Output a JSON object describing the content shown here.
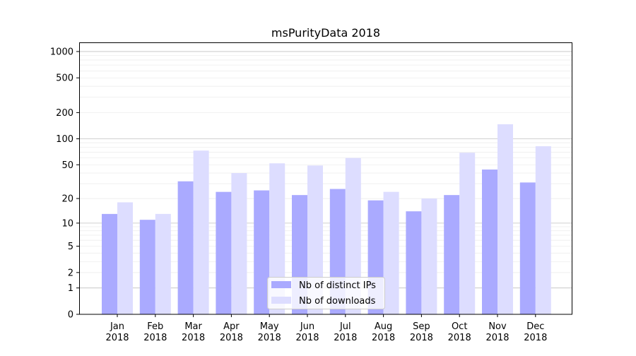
{
  "chart_data": {
    "type": "bar",
    "title": "msPurityData 2018",
    "xlabel": "",
    "ylabel": "",
    "yscale": "log(1+y)",
    "ylim": [
      0,
      1300
    ],
    "yticks": [
      0,
      1,
      2,
      5,
      10,
      20,
      50,
      100,
      200,
      500,
      1000
    ],
    "grid": true,
    "legend_position": "bottom-center",
    "categories": [
      "Jan\n2018",
      "Feb\n2018",
      "Mar\n2018",
      "Apr\n2018",
      "May\n2018",
      "Jun\n2018",
      "Jul\n2018",
      "Aug\n2018",
      "Sep\n2018",
      "Oct\n2018",
      "Nov\n2018",
      "Dec\n2018"
    ],
    "series": [
      {
        "name": "Nb of distinct IPs",
        "color": "#aaaaff",
        "values": [
          13,
          11,
          32,
          24,
          25,
          22,
          26,
          19,
          14,
          22,
          44,
          31
        ]
      },
      {
        "name": "Nb of downloads",
        "color": "#ddddff",
        "values": [
          18,
          13,
          73,
          40,
          52,
          49,
          60,
          24,
          20,
          69,
          147,
          82
        ]
      }
    ]
  }
}
